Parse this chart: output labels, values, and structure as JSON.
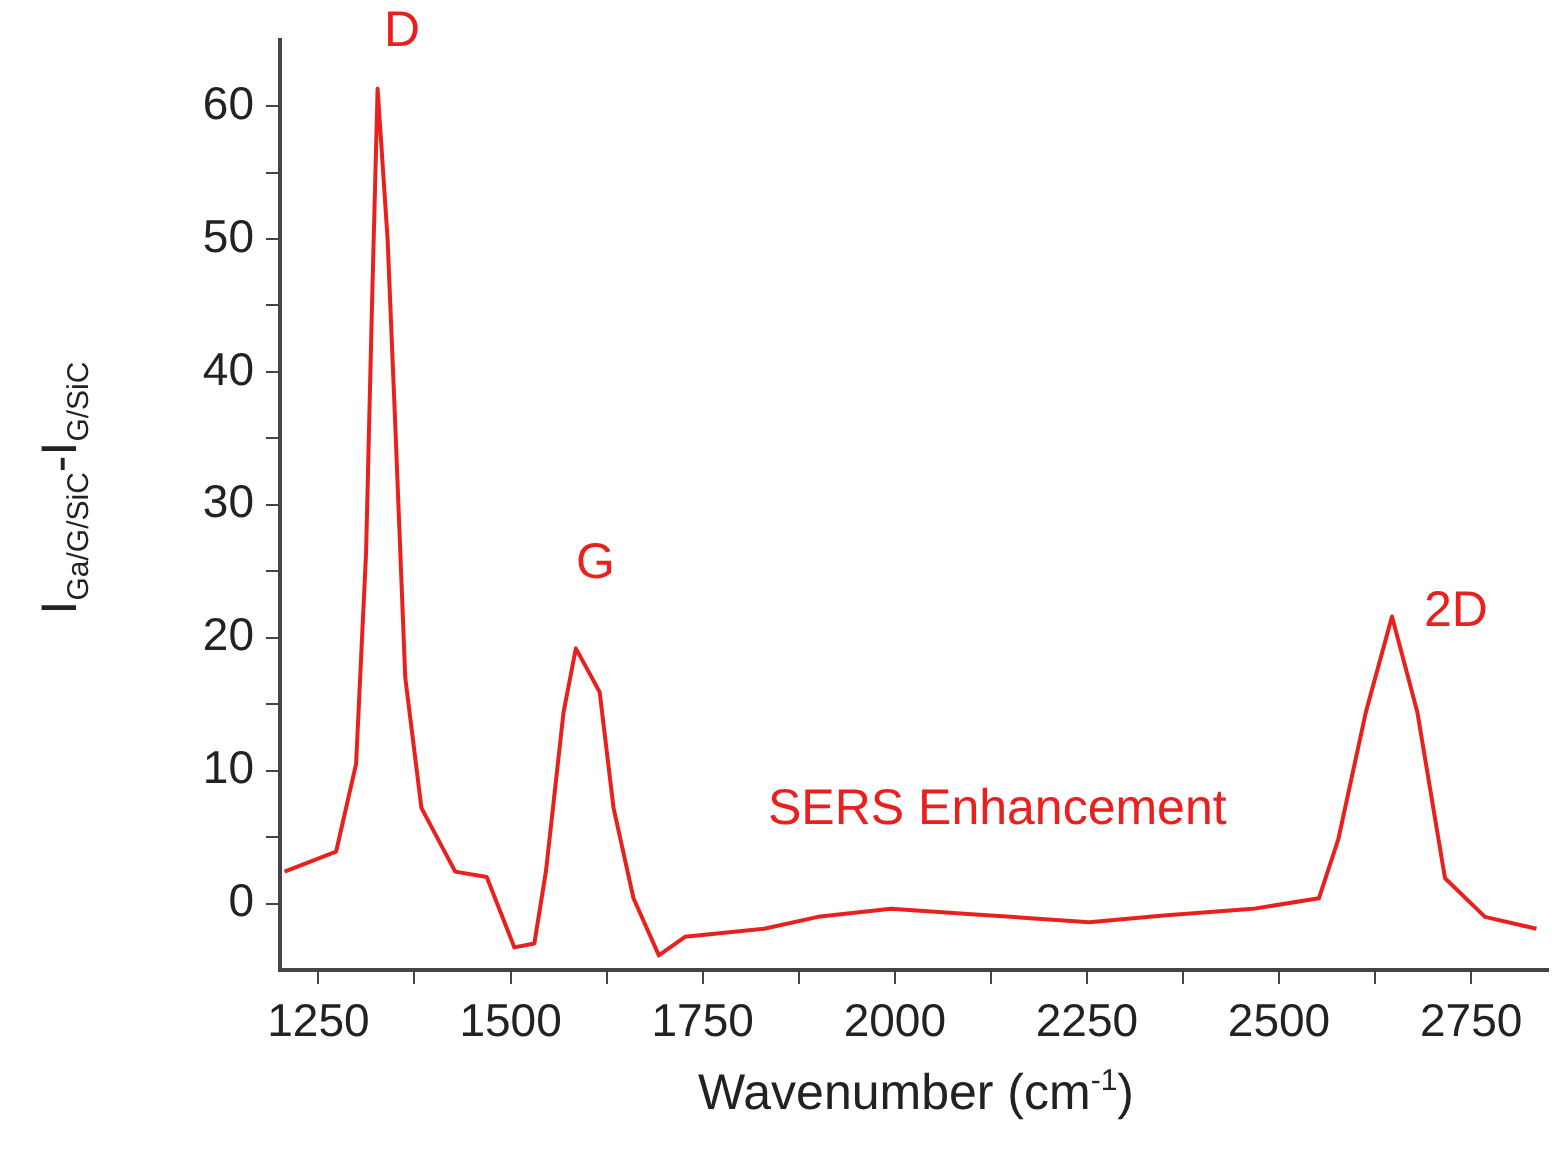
{
  "chart_data": {
    "type": "line",
    "xlabel": "Wavenumber (cm$^{-1}$)",
    "ylabel": "I$_{Ga/G/SiC}$-I$_{G/SiC}$",
    "xlim": [
      1200,
      2850
    ],
    "xticks": [
      1250,
      {
        "value": 1375,
        "label": null
      },
      1500,
      {
        "value": 1625,
        "label": null
      },
      1750,
      {
        "value": 1875,
        "label": null
      },
      2000,
      {
        "value": 2125,
        "label": null
      },
      2250,
      {
        "value": 2375,
        "label": null
      },
      2500,
      {
        "value": 2625,
        "label": null
      },
      2750
    ],
    "ylim": [
      -5,
      65
    ],
    "yticks": [
      0,
      {
        "value": 5,
        "label": null
      },
      10,
      {
        "value": 15,
        "label": null
      },
      20,
      {
        "value": 25,
        "label": null
      },
      30,
      {
        "value": 35,
        "label": null
      },
      40,
      {
        "value": 45,
        "label": null
      },
      50,
      {
        "value": 55,
        "label": null
      },
      60
    ],
    "grid": false,
    "legend": false,
    "marker": "none",
    "line_style": "solid",
    "series": [
      {
        "color": "#e8201e",
        "x": [
          1206,
          1273,
          1299,
          1312,
          1320,
          1327,
          1340,
          1350,
          1363,
          1384,
          1428,
          1469,
          1505,
          1531,
          1546,
          1569,
          1585,
          1603,
          1616,
          1634,
          1660,
          1693,
          1727,
          1830,
          1900,
          1995,
          2100,
          2253,
          2350,
          2466,
          2552,
          2577,
          2613,
          2647,
          2680,
          2716,
          2768,
          2835
        ],
        "values": [
          2.4,
          3.9,
          10.5,
          26.4,
          45.7,
          61.3,
          50,
          36,
          17,
          7.2,
          2.4,
          2,
          -3.3,
          -3,
          2.4,
          14.4,
          19.2,
          17.3,
          15.9,
          7.2,
          0.4,
          -3.9,
          -2.5,
          -1.9,
          -1,
          -0.4,
          -0.8,
          -1.4,
          -0.9,
          -0.4,
          0.4,
          4.8,
          14.4,
          21.6,
          14.4,
          1.9,
          -1,
          -1.9
        ]
      }
    ],
    "annotations": [
      "D",
      "G",
      "2D",
      "SERS Enhancement"
    ]
  }
}
